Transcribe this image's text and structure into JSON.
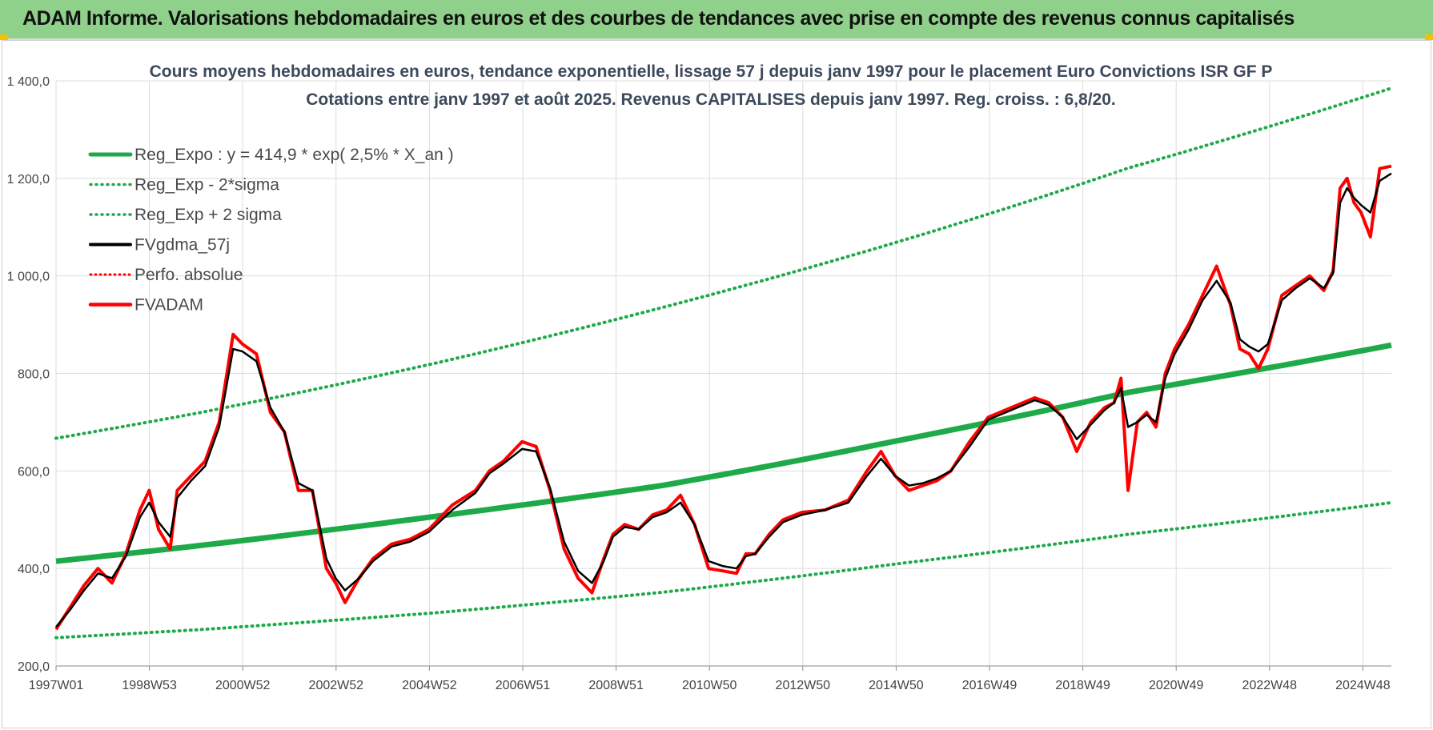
{
  "banner": {
    "title": "ADAM Informe. Valorisations hebdomadaires en euros et des courbes de tendances avec prise en compte des revenus connus capitalisés"
  },
  "colors": {
    "banner_bg": "#8fd08a",
    "green": "#1faa4a",
    "black": "#000000",
    "red": "#ff0000",
    "grid": "#dcdcdc"
  },
  "chart_data": {
    "type": "line",
    "title": "Cours moyens hebdomadaires en euros, tendance exponentielle, lissage 57 j depuis janv 1997 pour le placement Euro Convictions ISR GF P",
    "subtitle": "Cotations entre janv 1997 et août 2025.  Revenus CAPITALISES depuis janv 1997. Reg. croiss. : 6,8/20.",
    "xlabel": "",
    "ylabel": "",
    "ylim": [
      200,
      1400
    ],
    "xlim": [
      1997.0,
      2025.65
    ],
    "grid": true,
    "legend_position": "top-left",
    "y_ticks": [
      "200,0",
      "400,0",
      "600,0",
      "800,0",
      "1 000,0",
      "1 200,0",
      "1 400,0"
    ],
    "y_tick_values": [
      200,
      400,
      600,
      800,
      1000,
      1200,
      1400
    ],
    "x_tick_labels": [
      "1997W01",
      "1998W53",
      "2000W52",
      "2002W52",
      "2004W52",
      "2006W51",
      "2008W51",
      "2010W50",
      "2012W50",
      "2014W50",
      "2016W49",
      "2018W49",
      "2020W49",
      "2022W48",
      "2024W48"
    ],
    "legend": [
      {
        "label": "Reg_Expo : y = 414,9 * exp( 2,5% *  X_an )",
        "style": "solid-green"
      },
      {
        "label": "Reg_Exp - 2*sigma",
        "style": "dotted-green"
      },
      {
        "label": "Reg_Exp + 2 sigma",
        "style": "dotted-green"
      },
      {
        "label": "FVgdma_57j",
        "style": "solid-black"
      },
      {
        "label": "Perfo. absolue",
        "style": "dotted-red"
      },
      {
        "label": "FVADAM",
        "style": "solid-red"
      }
    ],
    "trend": {
      "x": [
        1997.0,
        2000.0,
        2005.0,
        2010.0,
        2015.0,
        2020.0,
        2025.65
      ],
      "reg": [
        414.9,
        446,
        505,
        570,
        661,
        761,
        858
      ],
      "lower": [
        258,
        274,
        308,
        351,
        409,
        470,
        535
      ],
      "upper": [
        667,
        718,
        818,
        935,
        1068,
        1221,
        1385
      ]
    },
    "series": [
      {
        "name": "FVADAM",
        "x": [
          1997.0,
          1997.3,
          1997.6,
          1997.9,
          1998.2,
          1998.5,
          1998.8,
          1999.0,
          1999.2,
          1999.45,
          1999.6,
          1999.9,
          2000.2,
          2000.5,
          2000.8,
          2001.0,
          2001.3,
          2001.6,
          2001.9,
          2002.2,
          2002.5,
          2002.8,
          2003.0,
          2003.2,
          2003.5,
          2003.8,
          2004.2,
          2004.6,
          2005.0,
          2005.5,
          2006.0,
          2006.3,
          2006.6,
          2007.0,
          2007.3,
          2007.6,
          2007.9,
          2008.2,
          2008.5,
          2008.75,
          2008.95,
          2009.2,
          2009.5,
          2009.8,
          2010.1,
          2010.4,
          2010.7,
          2011.0,
          2011.3,
          2011.6,
          2011.8,
          2012.0,
          2012.3,
          2012.6,
          2013.0,
          2013.5,
          2014.0,
          2014.4,
          2014.7,
          2015.0,
          2015.3,
          2015.6,
          2015.9,
          2016.2,
          2016.6,
          2017.0,
          2017.5,
          2018.0,
          2018.3,
          2018.6,
          2018.9,
          2019.2,
          2019.5,
          2019.7,
          2019.85,
          2020.0,
          2020.2,
          2020.4,
          2020.6,
          2020.8,
          2021.0,
          2021.3,
          2021.6,
          2021.9,
          2022.2,
          2022.4,
          2022.6,
          2022.8,
          2023.0,
          2023.3,
          2023.6,
          2023.9,
          2024.2,
          2024.4,
          2024.55,
          2024.7,
          2024.85,
          2025.0,
          2025.2,
          2025.4,
          2025.65
        ],
        "values": [
          275,
          320,
          365,
          400,
          370,
          430,
          520,
          560,
          480,
          440,
          560,
          590,
          620,
          700,
          880,
          860,
          840,
          720,
          680,
          560,
          560,
          400,
          370,
          330,
          380,
          420,
          450,
          460,
          480,
          530,
          560,
          600,
          620,
          660,
          650,
          560,
          440,
          380,
          350,
          420,
          470,
          490,
          480,
          510,
          520,
          550,
          490,
          400,
          395,
          390,
          430,
          430,
          470,
          500,
          515,
          520,
          540,
          600,
          640,
          590,
          560,
          570,
          580,
          600,
          660,
          710,
          730,
          750,
          740,
          710,
          640,
          700,
          730,
          740,
          790,
          560,
          700,
          720,
          690,
          800,
          850,
          900,
          960,
          1020,
          940,
          850,
          840,
          810,
          850,
          960,
          980,
          1000,
          970,
          1010,
          1180,
          1200,
          1150,
          1130,
          1080,
          1220,
          1225
        ]
      },
      {
        "name": "FVgdma_57j",
        "x": [
          1997.0,
          1997.3,
          1997.6,
          1997.9,
          1998.2,
          1998.5,
          1998.8,
          1999.0,
          1999.2,
          1999.45,
          1999.6,
          1999.9,
          2000.2,
          2000.5,
          2000.8,
          2001.0,
          2001.3,
          2001.6,
          2001.9,
          2002.2,
          2002.5,
          2002.8,
          2003.0,
          2003.2,
          2003.5,
          2003.8,
          2004.2,
          2004.6,
          2005.0,
          2005.5,
          2006.0,
          2006.3,
          2006.6,
          2007.0,
          2007.3,
          2007.6,
          2007.9,
          2008.2,
          2008.5,
          2008.75,
          2008.95,
          2009.2,
          2009.5,
          2009.8,
          2010.1,
          2010.4,
          2010.7,
          2011.0,
          2011.3,
          2011.6,
          2011.8,
          2012.0,
          2012.3,
          2012.6,
          2013.0,
          2013.5,
          2014.0,
          2014.4,
          2014.7,
          2015.0,
          2015.3,
          2015.6,
          2015.9,
          2016.2,
          2016.6,
          2017.0,
          2017.5,
          2018.0,
          2018.3,
          2018.6,
          2018.9,
          2019.2,
          2019.5,
          2019.7,
          2019.85,
          2020.0,
          2020.2,
          2020.4,
          2020.6,
          2020.8,
          2021.0,
          2021.3,
          2021.6,
          2021.9,
          2022.2,
          2022.4,
          2022.6,
          2022.8,
          2023.0,
          2023.3,
          2023.6,
          2023.9,
          2024.2,
          2024.4,
          2024.55,
          2024.7,
          2024.85,
          2025.0,
          2025.2,
          2025.4,
          2025.65
        ],
        "values": [
          280,
          315,
          355,
          390,
          380,
          425,
          505,
          535,
          495,
          465,
          545,
          580,
          610,
          690,
          850,
          845,
          825,
          730,
          680,
          575,
          560,
          420,
          380,
          355,
          380,
          415,
          445,
          455,
          475,
          520,
          555,
          595,
          615,
          645,
          640,
          565,
          455,
          395,
          370,
          415,
          465,
          485,
          480,
          505,
          515,
          535,
          490,
          415,
          405,
          400,
          425,
          430,
          465,
          495,
          510,
          520,
          535,
          590,
          625,
          590,
          570,
          575,
          585,
          600,
          650,
          705,
          725,
          745,
          735,
          710,
          665,
          695,
          725,
          740,
          770,
          690,
          700,
          715,
          700,
          790,
          840,
          890,
          950,
          990,
          945,
          870,
          855,
          845,
          860,
          950,
          975,
          995,
          975,
          1005,
          1150,
          1180,
          1160,
          1145,
          1130,
          1195,
          1210
        ]
      }
    ]
  }
}
